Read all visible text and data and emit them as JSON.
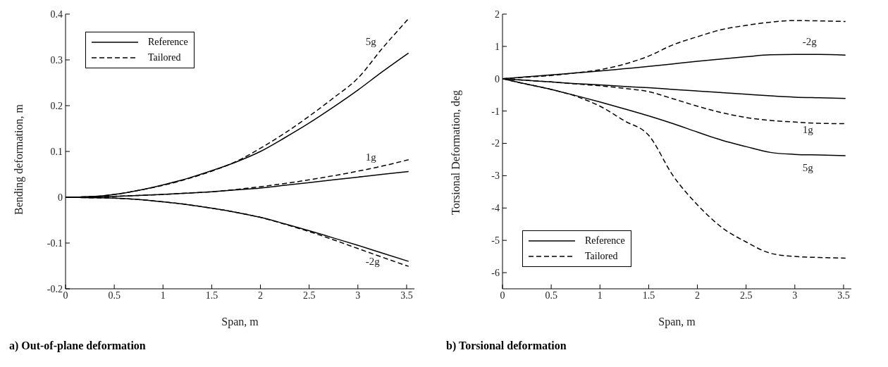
{
  "chart_data": [
    {
      "type": "line",
      "title": "a) Out-of-plane deformation",
      "xlabel": "Span, m",
      "ylabel": "Bending deformation, m",
      "xlim": [
        0,
        3.58
      ],
      "xticks": [
        0,
        0.5,
        1,
        1.5,
        2,
        2.5,
        3,
        3.5
      ],
      "ylim": [
        -0.2,
        0.4
      ],
      "yticks": [
        -0.2,
        -0.1,
        0,
        0.1,
        0.2,
        0.3,
        0.4
      ],
      "legend": "top left",
      "grid": false,
      "marker": "none",
      "x": [
        0,
        0.25,
        0.5,
        0.75,
        1,
        1.25,
        1.5,
        1.75,
        2,
        2.25,
        2.5,
        2.75,
        3,
        3.25,
        3.52
      ],
      "series": [
        {
          "name": "Reference",
          "color": "#000000",
          "line_style": "solid",
          "values": [
            0,
            0.001,
            0.006,
            0.015,
            0.027,
            0.041,
            0.058,
            0.077,
            0.1,
            0.13,
            0.162,
            0.197,
            0.234,
            0.274,
            0.315
          ]
        },
        {
          "name": "Tailored",
          "color": "#000000",
          "line_style": "dashed",
          "values": [
            0,
            0.001,
            0.006,
            0.015,
            0.026,
            0.04,
            0.057,
            0.078,
            0.107,
            0.14,
            0.177,
            0.217,
            0.26,
            0.325,
            0.39
          ]
        },
        {
          "color": "#000000",
          "line_style": "solid",
          "values": [
            0,
            0.001,
            0.002,
            0.004,
            0.006,
            0.009,
            0.012,
            0.016,
            0.02,
            0.026,
            0.032,
            0.038,
            0.044,
            0.05,
            0.056
          ]
        },
        {
          "color": "#000000",
          "line_style": "dashed",
          "values": [
            0,
            0.001,
            0.002,
            0.004,
            0.006,
            0.009,
            0.012,
            0.017,
            0.023,
            0.03,
            0.038,
            0.047,
            0.057,
            0.068,
            0.082
          ]
        },
        {
          "color": "#000000",
          "line_style": "solid",
          "values": [
            0,
            -0.001,
            -0.002,
            -0.005,
            -0.01,
            -0.016,
            -0.024,
            -0.033,
            -0.044,
            -0.058,
            -0.073,
            -0.089,
            -0.105,
            -0.122,
            -0.14
          ]
        },
        {
          "color": "#000000",
          "line_style": "dashed",
          "values": [
            0,
            -0.001,
            -0.002,
            -0.005,
            -0.01,
            -0.016,
            -0.024,
            -0.033,
            -0.044,
            -0.059,
            -0.075,
            -0.093,
            -0.112,
            -0.131,
            -0.151
          ]
        }
      ],
      "annotations": [
        "5g",
        "1g",
        "-2g"
      ]
    },
    {
      "type": "line",
      "title": "b) Torsional deformation",
      "xlabel": "Span, m",
      "ylabel": "Torsional Deformation, deg",
      "xlim": [
        0,
        3.58
      ],
      "xticks": [
        0,
        0.5,
        1,
        1.5,
        2,
        2.5,
        3,
        3.5
      ],
      "ylim": [
        -6.5,
        2
      ],
      "yticks": [
        -6,
        -5,
        -4,
        -3,
        -2,
        -1,
        0,
        1,
        2
      ],
      "legend": "bottom left",
      "grid": false,
      "marker": "none",
      "x": [
        0,
        0.25,
        0.5,
        0.75,
        1,
        1.25,
        1.5,
        1.75,
        2,
        2.25,
        2.5,
        2.75,
        3,
        3.25,
        3.52
      ],
      "series": [
        {
          "name": "Reference",
          "color": "#000000",
          "line_style": "solid",
          "values": [
            0,
            0.06,
            0.12,
            0.18,
            0.24,
            0.31,
            0.38,
            0.46,
            0.54,
            0.61,
            0.68,
            0.74,
            0.75,
            0.75,
            0.73
          ]
        },
        {
          "name": "Tailored",
          "color": "#000000",
          "line_style": "dashed",
          "values": [
            0,
            0.05,
            0.1,
            0.18,
            0.28,
            0.45,
            0.7,
            1.05,
            1.3,
            1.52,
            1.65,
            1.75,
            1.8,
            1.79,
            1.77
          ]
        },
        {
          "color": "#000000",
          "line_style": "solid",
          "values": [
            0,
            -0.05,
            -0.1,
            -0.15,
            -0.19,
            -0.24,
            -0.28,
            -0.33,
            -0.38,
            -0.43,
            -0.48,
            -0.53,
            -0.57,
            -0.59,
            -0.61
          ]
        },
        {
          "color": "#000000",
          "line_style": "dashed",
          "values": [
            0,
            -0.05,
            -0.1,
            -0.16,
            -0.22,
            -0.3,
            -0.4,
            -0.62,
            -0.85,
            -1.05,
            -1.2,
            -1.29,
            -1.34,
            -1.38,
            -1.39
          ]
        },
        {
          "color": "#000000",
          "line_style": "solid",
          "values": [
            0,
            -0.17,
            -0.33,
            -0.52,
            -0.72,
            -0.93,
            -1.15,
            -1.39,
            -1.65,
            -1.9,
            -2.1,
            -2.28,
            -2.34,
            -2.36,
            -2.38
          ]
        },
        {
          "color": "#000000",
          "line_style": "dashed",
          "values": [
            0,
            -0.17,
            -0.33,
            -0.54,
            -0.85,
            -1.3,
            -1.75,
            -3.0,
            -3.9,
            -4.6,
            -5.05,
            -5.4,
            -5.5,
            -5.53,
            -5.55
          ]
        }
      ],
      "annotations": [
        "-2g",
        "1g",
        "5g"
      ]
    }
  ]
}
